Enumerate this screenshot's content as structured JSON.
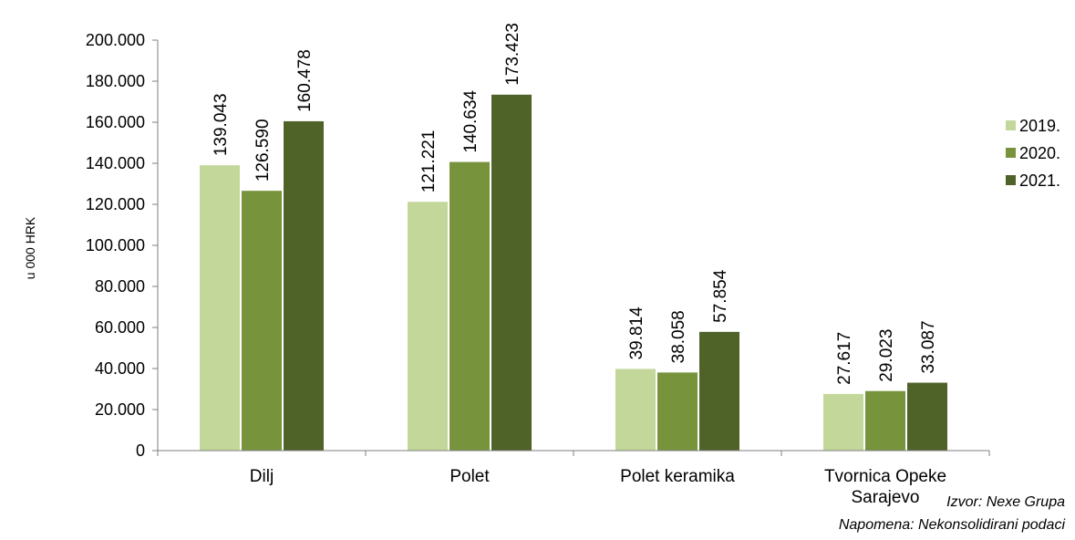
{
  "chart_data": {
    "type": "bar",
    "categories": [
      [
        "Dilj"
      ],
      [
        "Polet"
      ],
      [
        "Polet keramika"
      ],
      [
        "Tvornica Opeke",
        "Sarajevo"
      ]
    ],
    "series": [
      {
        "name": "2019.",
        "color": "#c4d79b",
        "values": [
          139043,
          121221,
          39814,
          27617
        ],
        "labels": [
          "139.043",
          "121.221",
          "39.814",
          "27.617"
        ]
      },
      {
        "name": "2020.",
        "color": "#77933c",
        "values": [
          126590,
          140634,
          38058,
          29023
        ],
        "labels": [
          "126.590",
          "140.634",
          "38.058",
          "29.023"
        ]
      },
      {
        "name": "2021.",
        "color": "#4f6228",
        "values": [
          160478,
          173423,
          57854,
          33087
        ],
        "labels": [
          "160.478",
          "173.423",
          "57.854",
          "33.087"
        ]
      }
    ],
    "ylim": [
      0,
      200000
    ],
    "yticks": [
      0,
      20000,
      40000,
      60000,
      80000,
      100000,
      120000,
      140000,
      160000,
      180000,
      200000
    ],
    "ytick_labels": [
      "0",
      "20.000",
      "40.000",
      "60.000",
      "80.000",
      "100.000",
      "120.000",
      "140.000",
      "160.000",
      "180.000",
      "200.000"
    ],
    "ylabel": "u 000 HRK",
    "xlabel": "",
    "title": "",
    "legend_position": "right",
    "grid": false
  },
  "notes": {
    "source": "Izvor: Nexe Grupa",
    "remark": "Napomena: Nekonsolidirani podaci"
  }
}
